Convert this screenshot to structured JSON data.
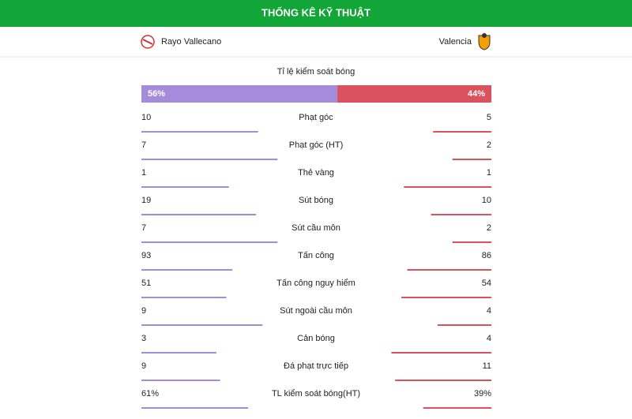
{
  "header": {
    "title": "THỐNG KÊ KỸ THUẬT"
  },
  "teams": {
    "home": "Rayo Vallecano",
    "away": "Valencia"
  },
  "possession": {
    "label": "Tỉ lệ kiểm soát bóng",
    "home": {
      "value": 56,
      "label": "56%"
    },
    "away": {
      "value": 44,
      "label": "44%"
    }
  },
  "stats": [
    {
      "label": "Phạt góc",
      "home": 10,
      "away": 5
    },
    {
      "label": "Phạt góc (HT)",
      "home": 7,
      "away": 2
    },
    {
      "label": "Thẻ vàng",
      "home": 1,
      "away": 1
    },
    {
      "label": "Sút bóng",
      "home": 19,
      "away": 10
    },
    {
      "label": "Sút cầu môn",
      "home": 7,
      "away": 2
    },
    {
      "label": "Tấn công",
      "home": 93,
      "away": 86
    },
    {
      "label": "Tấn công nguy hiểm",
      "home": 51,
      "away": 54
    },
    {
      "label": "Sút ngoài cầu môn",
      "home": 9,
      "away": 4
    },
    {
      "label": "Cản bóng",
      "home": 3,
      "away": 4
    },
    {
      "label": "Đá phạt trực tiếp",
      "home": 9,
      "away": 11
    },
    {
      "label": "TL kiểm soát bóng(HT)",
      "home": {
        "value": 61,
        "label": "61%"
      },
      "away": {
        "value": 39,
        "label": "39%"
      }
    }
  ]
}
